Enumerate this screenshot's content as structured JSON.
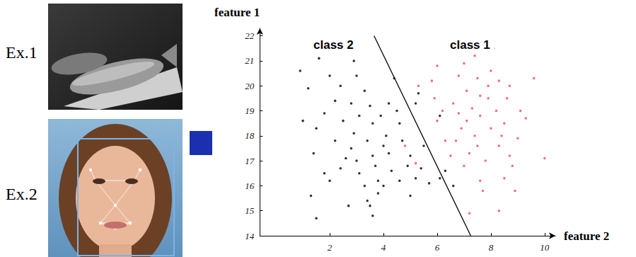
{
  "examples": [
    "Ex.1",
    "Ex.2"
  ],
  "chart_data": {
    "type": "scatter",
    "x_label": "feature 2",
    "y_label": "feature 1",
    "xlim": [
      -0.6,
      10.4
    ],
    "ylim": [
      14,
      22.3
    ],
    "xticks": [
      2,
      4,
      6,
      8,
      10
    ],
    "yticks": [
      14,
      15,
      16,
      17,
      18,
      19,
      20,
      21,
      22
    ],
    "grid": false,
    "series": [
      {
        "name": "class 2",
        "color": "#000000",
        "marker": "circle",
        "x": [
          1.3,
          1.6,
          0.9,
          1.2,
          1.0,
          1.5,
          1.4,
          1.3,
          1.5,
          1.8,
          2.0,
          2.2,
          2.4,
          2.5,
          2.2,
          2.0,
          2.4,
          2.7,
          2.9,
          3.0,
          2.8,
          3.1,
          2.9,
          2.8,
          3.0,
          3.1,
          3.3,
          3.4,
          3.6,
          3.3,
          3.5,
          3.6,
          3.4,
          3.6,
          3.7,
          3.8,
          3.5,
          3.8,
          4.0,
          4.1,
          4.2,
          4.3,
          4.0,
          4.4,
          4.2,
          4.6,
          4.5,
          4.7,
          4.9,
          5.0,
          5.2,
          5.4,
          5.5,
          5.2,
          5.3,
          5.7,
          6.1,
          6.3,
          6.6,
          6.1,
          5.0,
          4.6,
          3.9,
          2.6,
          1.8
        ],
        "values": [
          21.5,
          21.1,
          20.6,
          19.9,
          18.6,
          18.3,
          17.3,
          15.6,
          14.7,
          16.5,
          20.4,
          19.4,
          20.0,
          18.6,
          17.8,
          16.2,
          16.7,
          15.2,
          21.0,
          20.4,
          19.3,
          18.8,
          18.1,
          17.5,
          17.0,
          16.5,
          16.0,
          15.4,
          14.8,
          19.8,
          19.2,
          18.5,
          17.8,
          17.2,
          16.8,
          16.2,
          15.2,
          15.7,
          17.6,
          18.0,
          17.3,
          16.6,
          16.0,
          20.3,
          19.3,
          18.5,
          19.0,
          17.8,
          16.8,
          17.2,
          16.3,
          16.7,
          17.6,
          19.3,
          19.7,
          16.1,
          16.3,
          16.6,
          16.0,
          18.8,
          15.6,
          16.2,
          18.8,
          17.1,
          18.9
        ]
      },
      {
        "name": "class 1",
        "color": "#ee4b5a",
        "marker": "circle",
        "x": [
          5.3,
          5.8,
          5.9,
          6.4,
          6.0,
          6.3,
          6.6,
          7.2,
          7.0,
          7.4,
          7.5,
          7.1,
          7.3,
          6.8,
          6.9,
          7.4,
          7.2,
          7.0,
          7.6,
          7.2,
          7.7,
          8.1,
          8.0,
          8.3,
          7.9,
          8.2,
          8.5,
          8.0,
          8.3,
          8.7,
          8.5,
          8.9,
          8.3,
          8.7,
          8.6,
          9.1,
          9.3,
          9.0,
          8.8,
          9.6,
          10.0,
          7.8,
          7.6,
          7.9,
          6.5,
          4.8,
          5.2,
          6.7,
          7.1,
          7.6,
          8.4,
          7.5,
          6.2,
          6.8,
          6.0
        ],
        "values": [
          20.0,
          20.2,
          19.5,
          21.4,
          18.6,
          17.8,
          19.3,
          21.6,
          20.9,
          21.2,
          20.3,
          19.8,
          19.1,
          18.9,
          18.3,
          18.0,
          17.3,
          16.8,
          16.2,
          14.9,
          15.8,
          21.5,
          20.6,
          20.2,
          19.5,
          19.0,
          18.5,
          18.3,
          17.6,
          17.2,
          16.3,
          15.8,
          15.0,
          20.0,
          19.5,
          19.0,
          18.7,
          17.9,
          16.8,
          20.3,
          17.1,
          17.0,
          18.8,
          20.0,
          17.2,
          17.6,
          16.9,
          17.8,
          18.6,
          19.6,
          18.0,
          17.6,
          19.0,
          20.4,
          20.8
        ]
      },
      {
        "type": "line",
        "color": "#000000",
        "line_style": "solid",
        "x": [
          3.65,
          7.25
        ],
        "values": [
          22,
          14
        ]
      }
    ]
  }
}
